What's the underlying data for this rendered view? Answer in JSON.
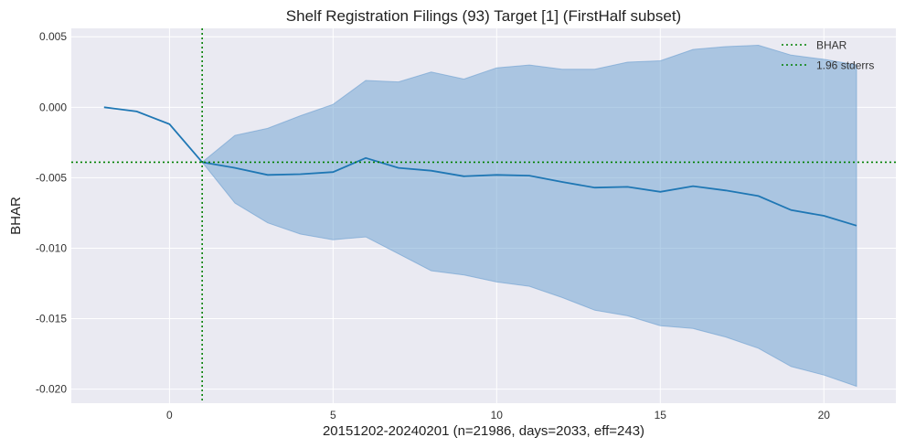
{
  "chart_data": {
    "type": "line",
    "title": "Shelf Registration Filings (93) Target [1] (FirstHalf subset)",
    "xlabel": "20151202-20240201 (n=21986, days=2033, eff=243)",
    "ylabel": "BHAR",
    "xlim": [
      -3,
      22.2
    ],
    "ylim": [
      -0.021,
      0.0056
    ],
    "xticks": [
      0,
      5,
      10,
      15,
      20
    ],
    "xtick_labels": [
      "0",
      "5",
      "10",
      "15",
      "20"
    ],
    "yticks": [
      0.005,
      0.0,
      -0.005,
      -0.01,
      -0.015,
      -0.02
    ],
    "ytick_labels": [
      "0.005",
      "0.000",
      "-0.005",
      "-0.010",
      "-0.015",
      "-0.020"
    ],
    "grid": true,
    "legend_position": "top-right",
    "legend": [
      {
        "label": "BHAR",
        "color": "#008000",
        "style": "dotted"
      },
      {
        "label": "1.96 stderrs",
        "color": "#008000",
        "style": "dotted"
      }
    ],
    "colors": {
      "line": "#1f77b4",
      "band": "#6a9fd0",
      "reference": "#008000",
      "plot_background": "#eaeaf2"
    },
    "series": [
      {
        "x": [
          -2,
          -1,
          0,
          1,
          2,
          3,
          4,
          5,
          6,
          7,
          8,
          9,
          10,
          11,
          12,
          13,
          14,
          15,
          16,
          17,
          18,
          19,
          20,
          21
        ],
        "values": [
          0.0,
          -0.0003,
          -0.0012,
          -0.0039,
          -0.0043,
          -0.0048,
          -0.00475,
          -0.0046,
          -0.0036,
          -0.0043,
          -0.0045,
          -0.0049,
          -0.0048,
          -0.00485,
          -0.0053,
          -0.0057,
          -0.00565,
          -0.006,
          -0.0056,
          -0.0059,
          -0.0063,
          -0.0073,
          -0.0077,
          -0.0084
        ]
      }
    ],
    "band": {
      "x": [
        1,
        2,
        3,
        4,
        5,
        6,
        7,
        8,
        9,
        10,
        11,
        12,
        13,
        14,
        15,
        16,
        17,
        18,
        19,
        20,
        21
      ],
      "upper": [
        -0.0039,
        -0.002,
        -0.0015,
        -0.0006,
        0.0002,
        0.0019,
        0.0018,
        0.0025,
        0.002,
        0.0028,
        0.003,
        0.0027,
        0.0027,
        0.0032,
        0.0033,
        0.0041,
        0.0043,
        0.0044,
        0.0037,
        0.0034,
        0.003
      ],
      "lower": [
        -0.0039,
        -0.0068,
        -0.0082,
        -0.009,
        -0.0094,
        -0.0092,
        -0.0104,
        -0.0116,
        -0.0119,
        -0.0124,
        -0.0127,
        -0.0135,
        -0.0144,
        -0.0148,
        -0.0155,
        -0.0157,
        -0.0163,
        -0.0171,
        -0.0184,
        -0.019,
        -0.0198
      ]
    },
    "reference_lines": {
      "vertical_x": 1,
      "horizontal_y": -0.0039
    }
  }
}
